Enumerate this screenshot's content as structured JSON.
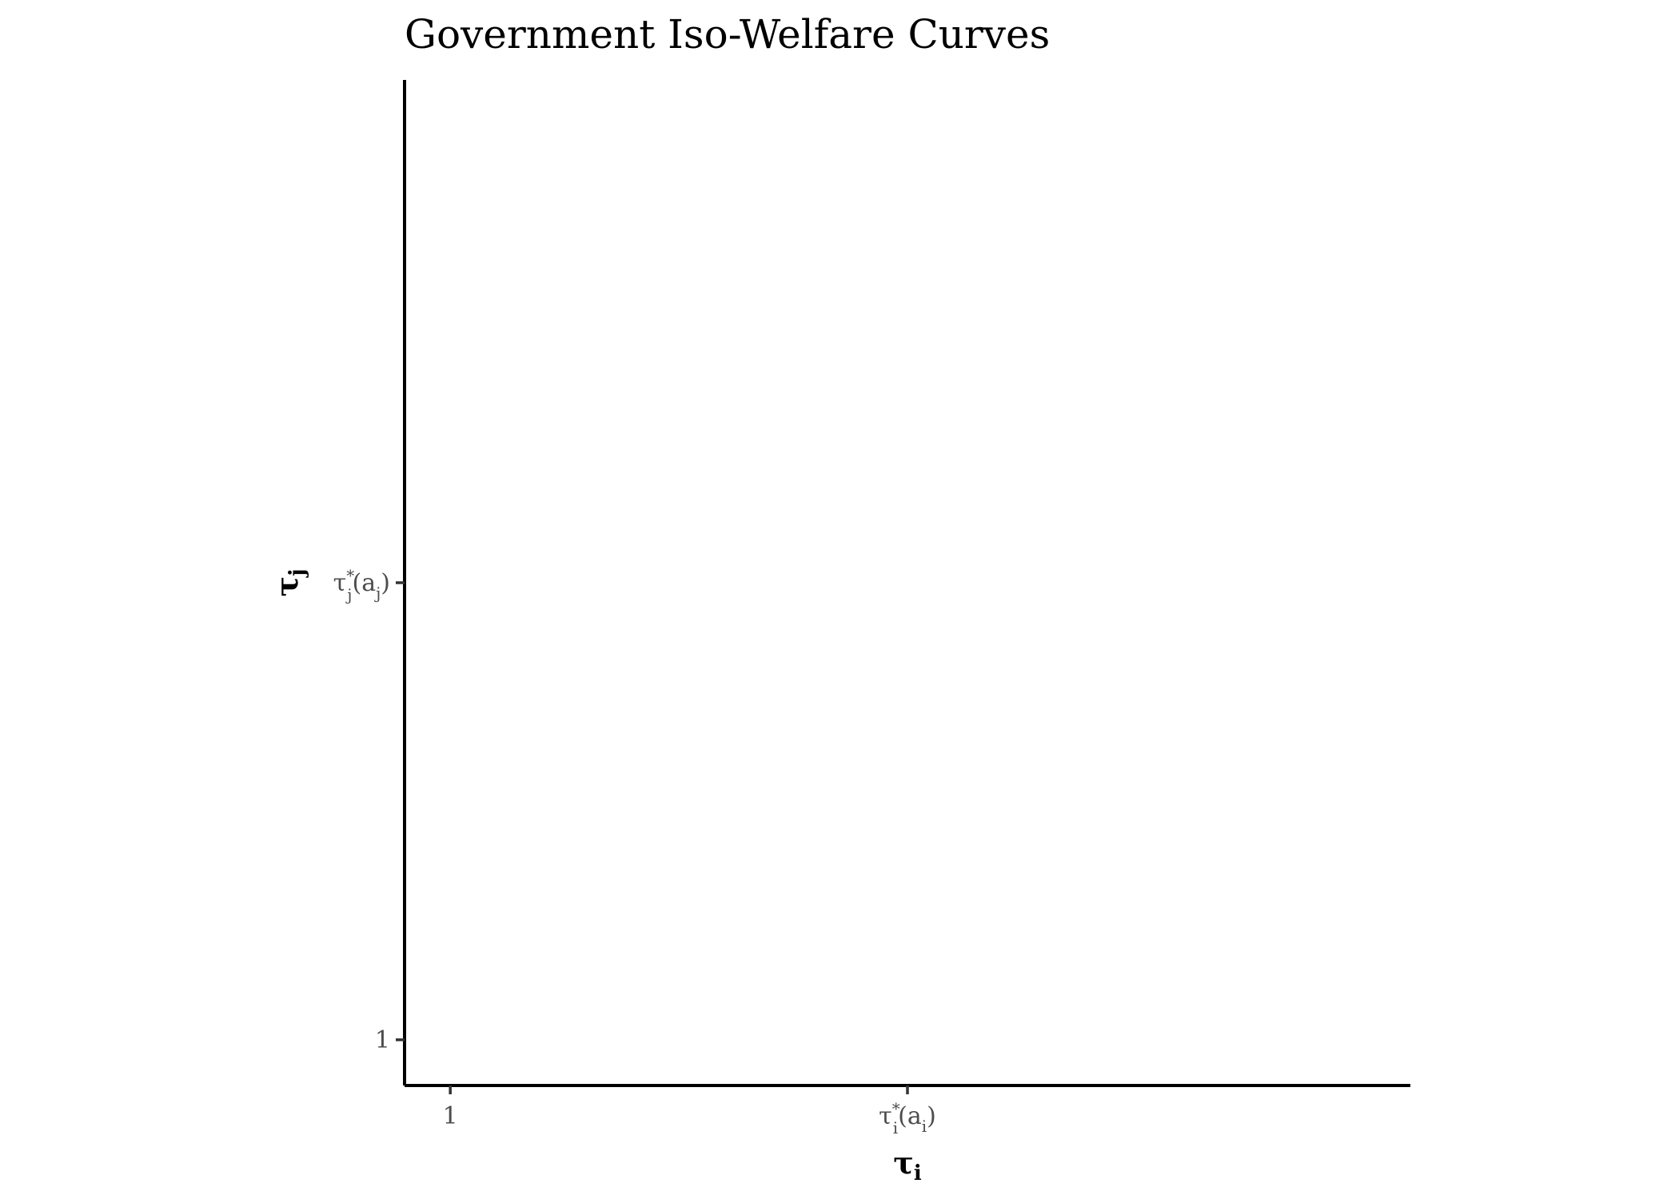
{
  "chart_data": {
    "type": "line",
    "title": "Government Iso-Welfare Curves",
    "xlabel": {
      "base": "τ",
      "sub": "i"
    },
    "ylabel": {
      "base": "τ",
      "sub": "j"
    },
    "xlim": [
      0.9,
      3.1
    ],
    "ylim": [
      0.9,
      3.1
    ],
    "x_ticks": [
      {
        "value": 1,
        "label": {
          "base": "1",
          "sup": "",
          "sub": "",
          "arg_base": "",
          "arg_sub": ""
        }
      },
      {
        "value": 2,
        "label": {
          "base": "τ",
          "sup": "*",
          "sub": "i",
          "arg_base": "a",
          "arg_sub": "i"
        }
      }
    ],
    "y_ticks": [
      {
        "value": 1,
        "label": {
          "base": "1",
          "sup": "",
          "sub": "",
          "arg_base": "",
          "arg_sub": ""
        }
      },
      {
        "value": 2,
        "label": {
          "base": "τ",
          "sup": "*",
          "sub": "j",
          "arg_base": "a",
          "arg_sub": "j"
        }
      }
    ],
    "series": [],
    "grid": false,
    "legend": "none"
  }
}
